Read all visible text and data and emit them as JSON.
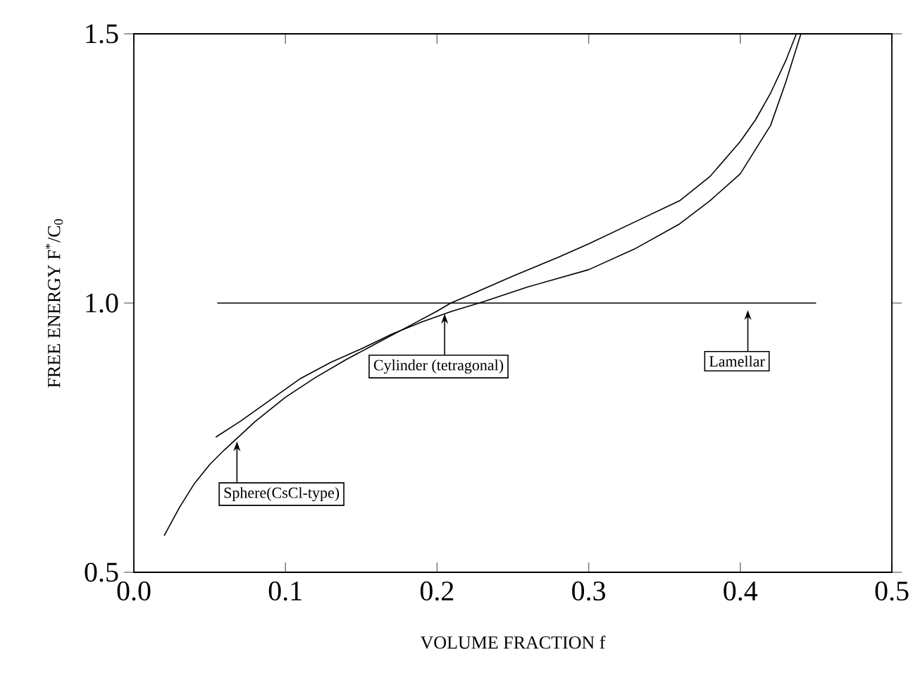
{
  "chart_data": {
    "type": "line",
    "xlabel": "VOLUME FRACTION  f",
    "ylabel": "FREE ENERGY  F$^{*}$/C$_{0}$",
    "xlim": [
      0,
      0.5
    ],
    "ylim": [
      0.5,
      1.5
    ],
    "xticks": [
      {
        "value": 0,
        "label": "0.0"
      },
      0.1,
      0.2,
      0.3,
      0.4,
      0.5
    ],
    "yticks": [
      0.5,
      {
        "value": 1,
        "label": "1.0"
      },
      1.5
    ],
    "grid": false,
    "marker": "none",
    "line_style": "solid",
    "series": [
      {
        "color": "#000000",
        "x": [
          0.02,
          0.03,
          0.04,
          0.05,
          0.06,
          0.08,
          0.1,
          0.12,
          0.14,
          0.16,
          0.18,
          0.2,
          0.209,
          0.22,
          0.25,
          0.28,
          0.3,
          0.33,
          0.36,
          0.38,
          0.4,
          0.41,
          0.42,
          0.43,
          0.437
        ],
        "values": [
          0.568,
          0.62,
          0.665,
          0.7,
          0.728,
          0.78,
          0.825,
          0.862,
          0.895,
          0.925,
          0.955,
          0.985,
          1.0,
          1.013,
          1.05,
          1.085,
          1.11,
          1.15,
          1.19,
          1.235,
          1.3,
          1.34,
          1.39,
          1.45,
          1.5
        ]
      },
      {
        "color": "#000000",
        "x": [
          0.054,
          0.07,
          0.09,
          0.11,
          0.13,
          0.15,
          0.17,
          0.19,
          0.21,
          0.23,
          0.26,
          0.3,
          0.33,
          0.36,
          0.38,
          0.4,
          0.42,
          0.43,
          0.44
        ],
        "values": [
          0.751,
          0.78,
          0.82,
          0.86,
          0.89,
          0.915,
          0.942,
          0.965,
          0.985,
          1.002,
          1.03,
          1.062,
          1.1,
          1.147,
          1.19,
          1.24,
          1.33,
          1.41,
          1.5
        ]
      },
      {
        "color": "#000000",
        "x": [
          0.055,
          0.45
        ],
        "values": [
          1.0,
          1.0
        ]
      }
    ],
    "annotations": [
      {
        "text": "Sphere(CsCl-type)",
        "x": 0.068,
        "y": 0.743
      },
      {
        "text": "Cylinder (tetragonal)",
        "x": 0.205,
        "y": 0.98
      },
      {
        "text": "Lamellar",
        "x": 0.405,
        "y": 0.987
      }
    ]
  }
}
